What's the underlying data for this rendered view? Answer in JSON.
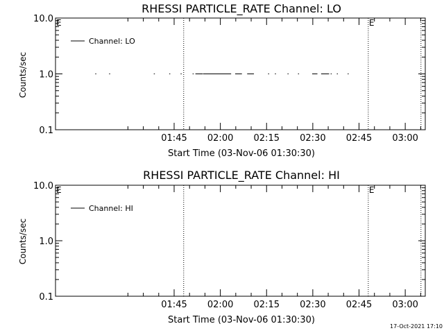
{
  "chart_data": [
    {
      "type": "line",
      "title": "RHESSI PARTICLE_RATE Channel: LO",
      "xlabel": "Start Time (03-Nov-06 01:30:30)",
      "ylabel": "Counts/sec",
      "yscale": "log",
      "ylim": [
        0.1,
        10.0
      ],
      "ytick_labels": [
        "0.1",
        "1.0",
        "10.0"
      ],
      "xlim_minutes": [
        -24,
        96
      ],
      "xticks": [
        {
          "label": "01:45",
          "minute": 14.5
        },
        {
          "label": "02:00",
          "minute": 29.5
        },
        {
          "label": "02:15",
          "minute": 44.5
        },
        {
          "label": "02:30",
          "minute": 59.5
        },
        {
          "label": "02:45",
          "minute": 74.5
        },
        {
          "label": "03:00",
          "minute": 89.5
        }
      ],
      "legend": {
        "position": "top-left",
        "entries": [
          "Channel: LO"
        ]
      },
      "markers": [
        {
          "label": "E",
          "minute": -24
        },
        {
          "label": "",
          "minute": 17.6
        },
        {
          "label": "E",
          "minute": 77.5
        },
        {
          "label": "",
          "minute": 94.6
        }
      ],
      "series": [
        {
          "name": "Channel: LO",
          "value": 1.0,
          "segments": [
            [
              -24.0,
              -22.2
            ],
            [
              -11.1,
              -10.8
            ],
            [
              -6.6,
              -6.3
            ],
            [
              7.9,
              8.2
            ],
            [
              12.9,
              13.2
            ],
            [
              16.6,
              16.9
            ],
            [
              20.5,
              20.8
            ],
            [
              21.4,
              23.8
            ],
            [
              23.9,
              33.0
            ],
            [
              34.3,
              36.5
            ],
            [
              38.2,
              40.4
            ],
            [
              45.0,
              45.3
            ],
            [
              47.2,
              47.5
            ],
            [
              51.3,
              51.6
            ],
            [
              54.7,
              55.0
            ],
            [
              59.3,
              61.0
            ],
            [
              62.2,
              64.8
            ],
            [
              65.3,
              65.6
            ],
            [
              67.3,
              67.6
            ],
            [
              70.8,
              71.1
            ]
          ]
        }
      ]
    },
    {
      "type": "line",
      "title": "RHESSI PARTICLE_RATE Channel: HI",
      "xlabel": "Start Time (03-Nov-06 01:30:30)",
      "ylabel": "Counts/sec",
      "yscale": "log",
      "ylim": [
        0.1,
        10.0
      ],
      "ytick_labels": [
        "0.1",
        "1.0",
        "10.0"
      ],
      "xlim_minutes": [
        -24,
        96
      ],
      "xticks": [
        {
          "label": "01:45",
          "minute": 14.5
        },
        {
          "label": "02:00",
          "minute": 29.5
        },
        {
          "label": "02:15",
          "minute": 44.5
        },
        {
          "label": "02:30",
          "minute": 59.5
        },
        {
          "label": "02:45",
          "minute": 74.5
        },
        {
          "label": "03:00",
          "minute": 89.5
        }
      ],
      "legend": {
        "position": "top-left",
        "entries": [
          "Channel: HI"
        ]
      },
      "markers": [
        {
          "label": "E",
          "minute": -24
        },
        {
          "label": "",
          "minute": 17.6
        },
        {
          "label": "E",
          "minute": 77.5
        },
        {
          "label": "",
          "minute": 94.6
        }
      ],
      "series": [
        {
          "name": "Channel: HI",
          "value": 1.0,
          "segments": []
        }
      ]
    }
  ],
  "timestamp": "17-Oct-2021 17:10"
}
